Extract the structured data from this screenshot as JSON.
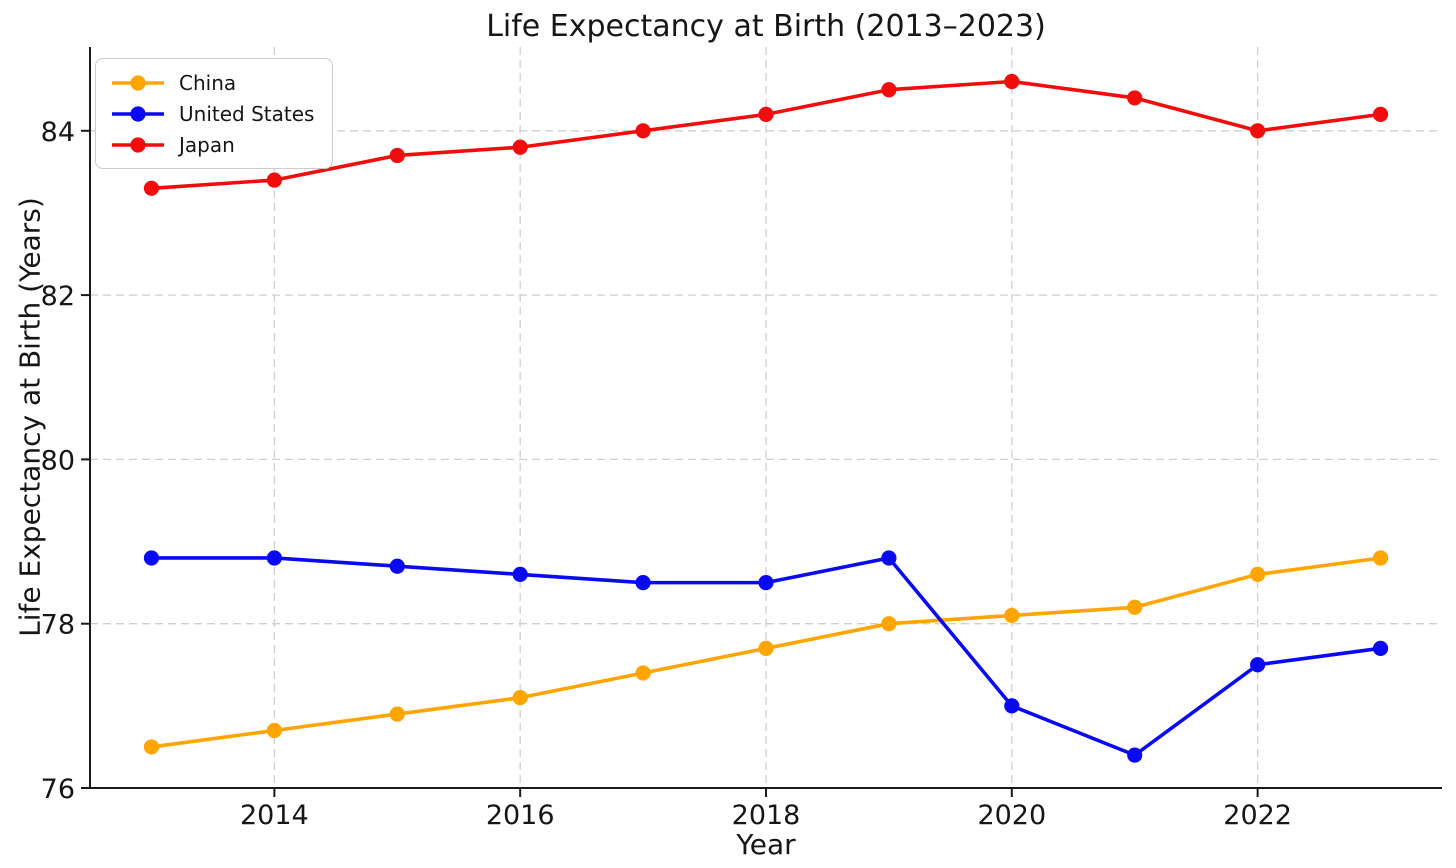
{
  "chart_data": {
    "type": "line",
    "title": "Life Expectancy at Birth (2013–2023)",
    "xlabel": "Year",
    "ylabel": "Life Expectancy at Birth (Years)",
    "x": [
      2013,
      2014,
      2015,
      2016,
      2017,
      2018,
      2019,
      2020,
      2021,
      2022,
      2023
    ],
    "series": [
      {
        "name": "China",
        "color": "#FFA500",
        "values": [
          76.5,
          76.7,
          76.9,
          77.1,
          77.4,
          77.7,
          78.0,
          78.1,
          78.2,
          78.6,
          78.8
        ]
      },
      {
        "name": "United States",
        "color": "#0909F2",
        "values": [
          78.8,
          78.8,
          78.7,
          78.6,
          78.5,
          78.5,
          78.8,
          77.0,
          76.4,
          77.5,
          77.7
        ]
      },
      {
        "name": "Japan",
        "color": "#F20D0D",
        "values": [
          83.3,
          83.4,
          83.7,
          83.8,
          84.0,
          84.2,
          84.5,
          84.6,
          84.4,
          84.0,
          84.2
        ]
      }
    ],
    "xticks": [
      2014,
      2016,
      2018,
      2020,
      2022
    ],
    "yticks": [
      76,
      78,
      80,
      82,
      84
    ],
    "xlim": [
      2012.5,
      2023.5
    ],
    "ylim": [
      76.0,
      85.02
    ],
    "grid": true,
    "grid_style": "dashed",
    "legend_position": "upper left",
    "marker": "o"
  },
  "style_colors": {
    "background": "#ffffff",
    "grid": "#cfcfcf",
    "axis": "#1a1a1a",
    "text": "#161616",
    "legend_border": "#cccccc"
  }
}
